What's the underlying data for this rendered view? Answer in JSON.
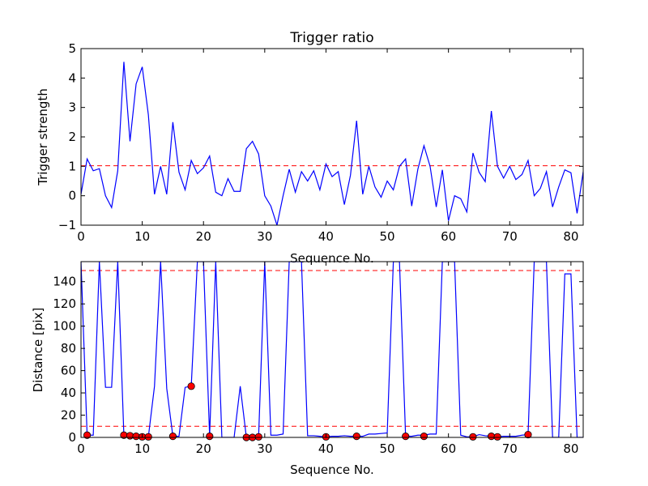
{
  "chart_data": [
    {
      "type": "line",
      "title": "Trigger ratio",
      "xlabel": "Sequence No.",
      "ylabel": "Trigger strength",
      "xlim": [
        0,
        82
      ],
      "ylim": [
        -1,
        5
      ],
      "xticks": [
        0,
        10,
        20,
        30,
        40,
        50,
        60,
        70,
        80
      ],
      "yticks": [
        -1,
        0,
        1,
        2,
        3,
        4,
        5
      ],
      "grid": false,
      "threshold_lines": [
        1.02
      ],
      "series": [
        {
          "color": "#0000ff",
          "x": [
            0,
            1,
            2,
            3,
            4,
            5,
            6,
            7,
            8,
            9,
            10,
            11,
            12,
            13,
            14,
            15,
            16,
            17,
            18,
            19,
            20,
            21,
            22,
            23,
            24,
            25,
            26,
            27,
            28,
            29,
            30,
            31,
            32,
            33,
            34,
            35,
            36,
            37,
            38,
            39,
            40,
            41,
            42,
            43,
            44,
            45,
            46,
            47,
            48,
            49,
            50,
            51,
            52,
            53,
            54,
            55,
            56,
            57,
            58,
            59,
            60,
            61,
            62,
            63,
            64,
            65,
            66,
            67,
            68,
            69,
            70,
            71,
            72,
            73,
            74,
            75,
            76,
            77,
            78,
            79,
            80,
            81,
            82
          ],
          "y": [
            0.05,
            1.25,
            0.85,
            0.92,
            0.0,
            -0.4,
            0.85,
            4.55,
            1.85,
            3.8,
            4.38,
            2.75,
            0.05,
            1.0,
            0.05,
            2.5,
            0.8,
            0.2,
            1.2,
            0.75,
            0.95,
            1.35,
            0.12,
            0.0,
            0.58,
            0.15,
            0.15,
            1.6,
            1.85,
            1.42,
            0.0,
            -0.35,
            -1.0,
            0.0,
            0.9,
            0.12,
            0.82,
            0.5,
            0.85,
            0.2,
            1.08,
            0.65,
            0.82,
            -0.3,
            0.7,
            2.55,
            0.05,
            1.0,
            0.3,
            -0.05,
            0.5,
            0.2,
            1.0,
            1.25,
            -0.35,
            0.9,
            1.7,
            1.0,
            -0.38,
            0.88,
            -0.85,
            0.0,
            -0.1,
            -0.55,
            1.45,
            0.8,
            0.48,
            2.88,
            1.0,
            0.6,
            1.0,
            0.55,
            0.72,
            1.2,
            0.0,
            0.25,
            0.82,
            -0.38,
            0.3,
            0.88,
            0.78,
            -0.6,
            0.82
          ]
        }
      ]
    },
    {
      "type": "line",
      "title": "",
      "xlabel": "Sequence No.",
      "ylabel": "Distance [pix]",
      "xlim": [
        0,
        82
      ],
      "ylim": [
        0,
        158
      ],
      "xticks": [
        0,
        10,
        20,
        30,
        40,
        50,
        60,
        70,
        80
      ],
      "yticks": [
        0,
        20,
        40,
        60,
        80,
        100,
        120,
        140
      ],
      "grid": false,
      "threshold_lines": [
        150,
        10
      ],
      "series": [
        {
          "color": "#0000ff",
          "x": [
            0,
            1,
            2,
            3,
            4,
            5,
            6,
            7,
            8,
            9,
            10,
            11,
            12,
            13,
            14,
            15,
            16,
            17,
            18,
            19,
            20,
            21,
            22,
            23,
            24,
            25,
            26,
            27,
            28,
            29,
            30,
            31,
            32,
            33,
            34,
            35,
            36,
            37,
            38,
            39,
            40,
            41,
            42,
            43,
            44,
            45,
            46,
            47,
            48,
            49,
            50,
            51,
            52,
            53,
            54,
            55,
            56,
            57,
            58,
            59,
            60,
            61,
            62,
            63,
            64,
            65,
            66,
            67,
            68,
            69,
            70,
            71,
            72,
            73,
            74,
            75,
            76,
            77,
            78,
            79,
            80,
            81,
            82
          ],
          "y": [
            158,
            2,
            2,
            158,
            45,
            45,
            158,
            2,
            1.5,
            1,
            0.5,
            0.5,
            46,
            158,
            44,
            1,
            1,
            45,
            46,
            158,
            158,
            1,
            158,
            0,
            0,
            0,
            46,
            0,
            0,
            0.5,
            158,
            2,
            2,
            3,
            158,
            158,
            158,
            1.5,
            1.5,
            1,
            0.5,
            1,
            1,
            1.5,
            1,
            1,
            1,
            3,
            3,
            3.5,
            4,
            158,
            158,
            1,
            1,
            2,
            2,
            3,
            3,
            158,
            158,
            158,
            2,
            0.5,
            0.5,
            2.5,
            1.5,
            1,
            0.5,
            1,
            1,
            1,
            2,
            2.5,
            158,
            158,
            158,
            0,
            0,
            147,
            147,
            0,
            0
          ]
        },
        {
          "type": "scatter",
          "color": "#ff0000",
          "x": [
            1,
            7,
            8,
            9,
            10,
            11,
            15,
            18,
            21,
            27,
            28,
            29,
            40,
            45,
            53,
            56,
            64,
            67,
            68,
            73
          ],
          "y": [
            2,
            2,
            1.5,
            1,
            0.5,
            0.5,
            1,
            46,
            1,
            0,
            0,
            0.5,
            0.5,
            1,
            1,
            1,
            0.5,
            1,
            0.5,
            2.5
          ]
        }
      ]
    }
  ]
}
